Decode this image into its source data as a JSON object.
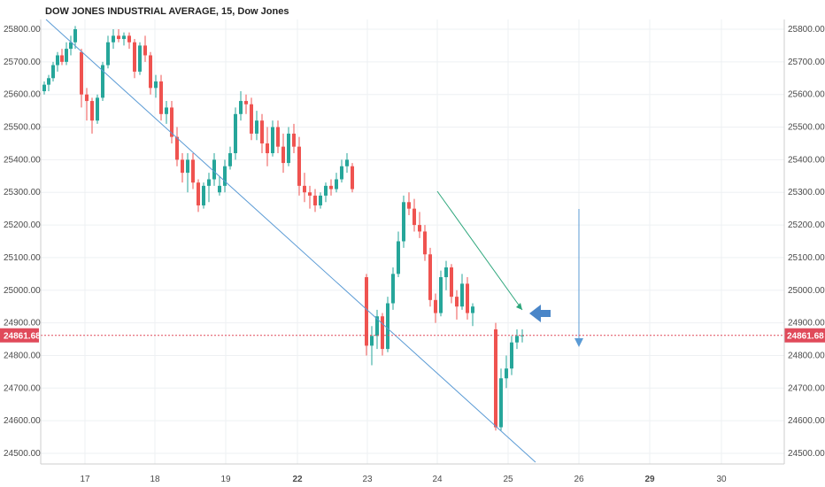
{
  "title": "DOW JONES INDUSTRIAL AVERAGE, 15, Dow Jones",
  "current_price_label": "24861.68",
  "colors": {
    "up": "#26a69a",
    "down": "#ef5350",
    "grid": "#eef0f3",
    "trendline": "#5b9bd5",
    "green_trendline": "#2ca67b",
    "price_line": "#e04a5a",
    "arrow": "#4a86c8",
    "axis": "#777777"
  },
  "chart_data": {
    "type": "candlestick",
    "y_ticks": [
      "25800.00",
      "25700.00",
      "25600.00",
      "25500.00",
      "25400.00",
      "25300.00",
      "25200.00",
      "25100.00",
      "25000.00",
      "24900.00",
      "24800.00",
      "24700.00",
      "24600.00",
      "24500.00"
    ],
    "x_ticks": [
      "17",
      "18",
      "19",
      "22",
      "23",
      "24",
      "25",
      "26",
      "29",
      "30"
    ],
    "bold_x_ticks": [
      "22",
      "29"
    ],
    "ylim": [
      24480,
      25820
    ],
    "current_price": 24861.68,
    "ohlc": [
      [
        25610,
        25640,
        25600,
        25630
      ],
      [
        25630,
        25660,
        25610,
        25650
      ],
      [
        25650,
        25700,
        25640,
        25690
      ],
      [
        25690,
        25730,
        25670,
        25720
      ],
      [
        25720,
        25740,
        25690,
        25700
      ],
      [
        25700,
        25760,
        25690,
        25740
      ],
      [
        25740,
        25780,
        25720,
        25760
      ],
      [
        25760,
        25810,
        25740,
        25800
      ],
      [
        25730,
        25740,
        25560,
        25600
      ],
      [
        25600,
        25620,
        25520,
        25580
      ],
      [
        25580,
        25590,
        25480,
        25520
      ],
      [
        25520,
        25600,
        25510,
        25590
      ],
      [
        25590,
        25700,
        25580,
        25690
      ],
      [
        25690,
        25780,
        25680,
        25760
      ],
      [
        25760,
        25800,
        25740,
        25780
      ],
      [
        25780,
        25800,
        25760,
        25770
      ],
      [
        25770,
        25790,
        25750,
        25780
      ],
      [
        25780,
        25790,
        25740,
        25760
      ],
      [
        25760,
        25770,
        25650,
        25670
      ],
      [
        25670,
        25760,
        25660,
        25750
      ],
      [
        25750,
        25780,
        25700,
        25720
      ],
      [
        25720,
        25730,
        25600,
        25620
      ],
      [
        25620,
        25660,
        25590,
        25640
      ],
      [
        25640,
        25660,
        25520,
        25540
      ],
      [
        25540,
        25580,
        25510,
        25560
      ],
      [
        25560,
        25580,
        25450,
        25470
      ],
      [
        25470,
        25500,
        25380,
        25400
      ],
      [
        25400,
        25420,
        25330,
        25360
      ],
      [
        25360,
        25420,
        25300,
        25400
      ],
      [
        25400,
        25420,
        25310,
        25330
      ],
      [
        25330,
        25340,
        25240,
        25260
      ],
      [
        25260,
        25330,
        25250,
        25320
      ],
      [
        25320,
        25360,
        25270,
        25340
      ],
      [
        25340,
        25420,
        25320,
        25400
      ],
      [
        25300,
        25350,
        25290,
        25320
      ],
      [
        25320,
        25400,
        25300,
        25380
      ],
      [
        25380,
        25440,
        25370,
        25420
      ],
      [
        25420,
        25560,
        25400,
        25540
      ],
      [
        25540,
        25610,
        25520,
        25580
      ],
      [
        25580,
        25600,
        25540,
        25570
      ],
      [
        25570,
        25590,
        25460,
        25480
      ],
      [
        25480,
        25550,
        25460,
        25520
      ],
      [
        25520,
        25540,
        25420,
        25450
      ],
      [
        25450,
        25500,
        25380,
        25420
      ],
      [
        25420,
        25520,
        25410,
        25500
      ],
      [
        25500,
        25520,
        25420,
        25440
      ],
      [
        25440,
        25480,
        25360,
        25390
      ],
      [
        25390,
        25500,
        25380,
        25480
      ],
      [
        25480,
        25510,
        25420,
        25440
      ],
      [
        25440,
        25470,
        25290,
        25320
      ],
      [
        25320,
        25360,
        25270,
        25300
      ],
      [
        25300,
        25320,
        25250,
        25290
      ],
      [
        25290,
        25310,
        25240,
        25260
      ],
      [
        25260,
        25300,
        25250,
        25290
      ],
      [
        25290,
        25330,
        25270,
        25320
      ],
      [
        25320,
        25340,
        25290,
        25310
      ],
      [
        25310,
        25360,
        25300,
        25340
      ],
      [
        25340,
        25400,
        25330,
        25380
      ],
      [
        25380,
        25420,
        25360,
        25400
      ],
      [
        25380,
        25390,
        25300,
        25310
      ],
      [
        25040,
        25050,
        24800,
        24830
      ],
      [
        24830,
        24890,
        24770,
        24860
      ],
      [
        24860,
        24940,
        24820,
        24920
      ],
      [
        24920,
        24930,
        24800,
        24820
      ],
      [
        24820,
        24980,
        24810,
        24960
      ],
      [
        24960,
        25070,
        24940,
        25050
      ],
      [
        25050,
        25180,
        25040,
        25150
      ],
      [
        25150,
        25290,
        25130,
        25270
      ],
      [
        25270,
        25300,
        25230,
        25250
      ],
      [
        25250,
        25280,
        25180,
        25200
      ],
      [
        25200,
        25240,
        25160,
        25180
      ],
      [
        25180,
        25200,
        25090,
        25110
      ],
      [
        25110,
        25130,
        24950,
        24970
      ],
      [
        24970,
        24990,
        24900,
        24930
      ],
      [
        24930,
        25060,
        24920,
        25040
      ],
      [
        25040,
        25090,
        25000,
        25070
      ],
      [
        25070,
        25080,
        24960,
        24980
      ],
      [
        24980,
        25000,
        24910,
        24950
      ],
      [
        24950,
        25050,
        24940,
        25020
      ],
      [
        25020,
        25040,
        24910,
        24930
      ],
      [
        24930,
        24960,
        24890,
        24950
      ],
      [
        24880,
        24900,
        24570,
        24580
      ],
      [
        24580,
        24760,
        24570,
        24730
      ],
      [
        24730,
        24800,
        24700,
        24760
      ],
      [
        24760,
        24860,
        24740,
        24840
      ],
      [
        24840,
        24880,
        24820,
        24860
      ],
      [
        24860,
        24880,
        24840,
        24861.68
      ]
    ],
    "x_positions": [
      50,
      55,
      60,
      65,
      70,
      75,
      80,
      85,
      92,
      98,
      104,
      110,
      116,
      122,
      128,
      134,
      140,
      146,
      152,
      158,
      164,
      170,
      176,
      182,
      188,
      194,
      200,
      206,
      212,
      218,
      224,
      230,
      236,
      242,
      248,
      254,
      260,
      266,
      272,
      278,
      284,
      290,
      296,
      302,
      308,
      314,
      320,
      326,
      332,
      338,
      344,
      350,
      356,
      362,
      368,
      374,
      380,
      386,
      392,
      398,
      414,
      420,
      426,
      432,
      438,
      444,
      450,
      456,
      462,
      468,
      474,
      480,
      486,
      492,
      498,
      504,
      510,
      516,
      522,
      528,
      534,
      560,
      566,
      572,
      578,
      584,
      590
    ]
  }
}
